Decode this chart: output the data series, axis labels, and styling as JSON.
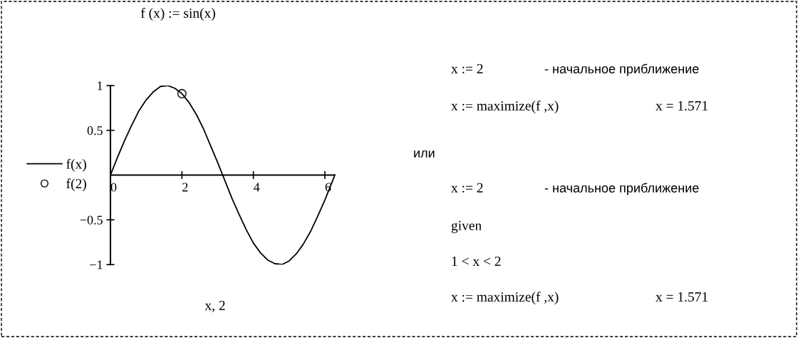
{
  "chart_data": {
    "type": "line",
    "title": "f (x) := sin(x)",
    "xlabel": "x, 2",
    "xlim": [
      0,
      6.28
    ],
    "ylim": [
      -1,
      1
    ],
    "xticks": [
      0,
      2,
      4,
      6
    ],
    "yticks": [
      -1,
      -0.5,
      0.5,
      1
    ],
    "grid": false,
    "legend": "left",
    "series": [
      {
        "name": "f(x)",
        "color": "#000000",
        "marker": "none",
        "line_style": "solid",
        "x": [
          0,
          0.2,
          0.4,
          0.6,
          0.8,
          1.0,
          1.2,
          1.4,
          1.6,
          1.8,
          2.0,
          2.2,
          2.4,
          2.6,
          2.8,
          3.0,
          3.2,
          3.4,
          3.6,
          3.8,
          4.0,
          4.2,
          4.4,
          4.6,
          4.8,
          5.0,
          5.2,
          5.4,
          5.6,
          5.8,
          6.0,
          6.2,
          6.28
        ],
        "values": [
          0,
          0.2,
          0.39,
          0.56,
          0.72,
          0.84,
          0.93,
          0.99,
          1.0,
          0.97,
          0.91,
          0.81,
          0.68,
          0.52,
          0.33,
          0.14,
          -0.06,
          -0.26,
          -0.44,
          -0.61,
          -0.76,
          -0.87,
          -0.95,
          -0.99,
          -1.0,
          -0.96,
          -0.88,
          -0.77,
          -0.63,
          -0.46,
          -0.28,
          -0.08,
          0
        ]
      },
      {
        "name": "f(2)",
        "type": "scatter",
        "color": "#000000",
        "marker": "circle",
        "x": [
          2
        ],
        "values": [
          0.91
        ]
      }
    ],
    "annotations": [
      "x := 2",
      "- начальное приближение",
      "x := maximize(f ,x)",
      "x = 1.571",
      "или",
      "x := 2",
      "- начальное приближение",
      "given",
      "1 < x < 2",
      "x := maximize(f ,x)",
      "x = 1.571"
    ]
  }
}
